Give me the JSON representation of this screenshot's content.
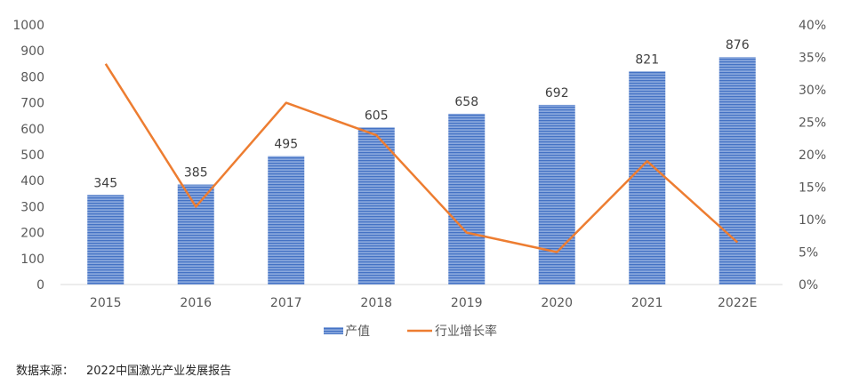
{
  "chart_data": {
    "type": "bar",
    "categories": [
      "2015",
      "2016",
      "2017",
      "2018",
      "2019",
      "2020",
      "2021",
      "2022E"
    ],
    "series": [
      {
        "name": "产值",
        "type": "bar",
        "axis": "left",
        "values": [
          345,
          385,
          495,
          605,
          658,
          692,
          821,
          876
        ],
        "color": "#4472C4"
      },
      {
        "name": "行业增长率",
        "type": "line",
        "axis": "right",
        "values": [
          34.0,
          12.0,
          28.0,
          23.0,
          8.0,
          5.0,
          19.0,
          6.5
        ],
        "color": "#ED7D31"
      }
    ],
    "y_left": {
      "ylim": [
        0,
        1000
      ],
      "ticks": [
        "0",
        "100",
        "200",
        "300",
        "400",
        "500",
        "600",
        "700",
        "800",
        "900",
        "1000"
      ]
    },
    "y_right": {
      "ylim": [
        0,
        40
      ],
      "ticks": [
        "0%",
        "5%",
        "10%",
        "15%",
        "20%",
        "25%",
        "30%",
        "35%",
        "40%"
      ]
    },
    "data_labels": [
      "345",
      "385",
      "495",
      "605",
      "658",
      "692",
      "821",
      "876"
    ],
    "legend": {
      "position": "bottom",
      "entries": [
        "产值",
        "行业增长率"
      ]
    },
    "grid": false
  },
  "source": {
    "label": "数据来源：",
    "text": "2022中国激光产业发展报告"
  }
}
